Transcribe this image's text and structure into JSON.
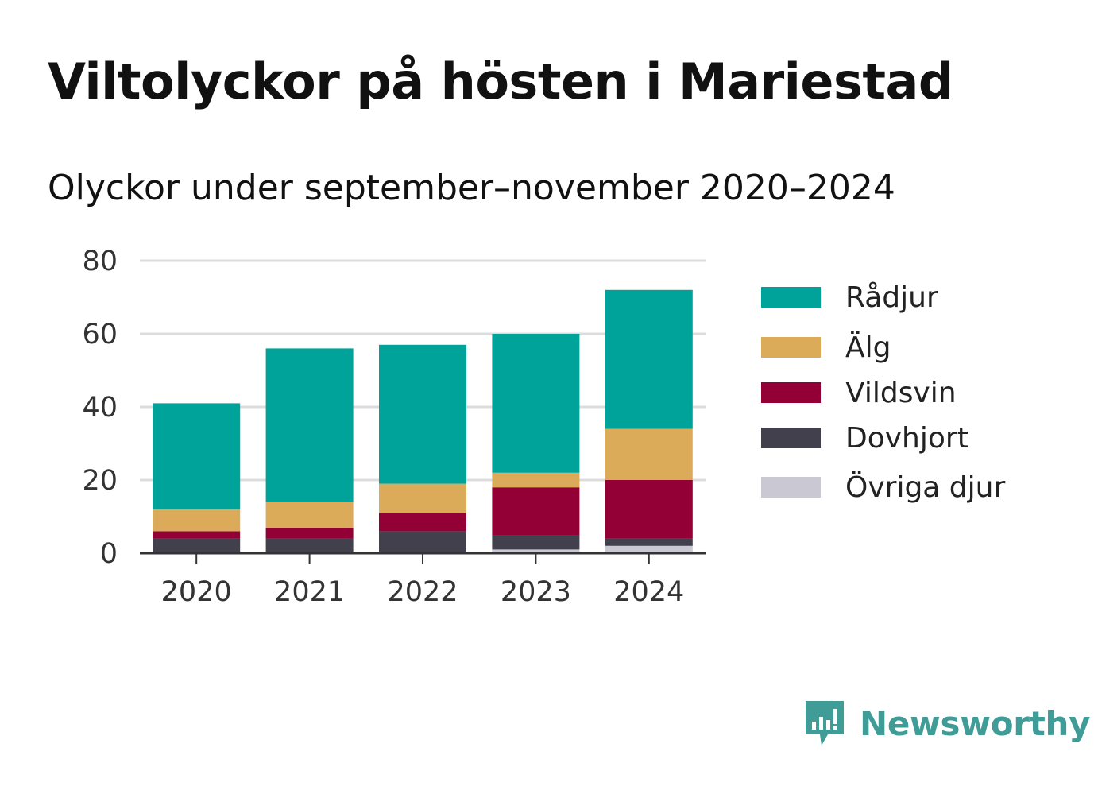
{
  "title": "Viltolyckor på hösten i Mariestad",
  "subtitle": "Olyckor under september–november 2020–2024",
  "brand": {
    "name": "Newsworthy",
    "icon": "newsworthy-logo-icon",
    "color": "#3f9c97"
  },
  "chart_data": {
    "type": "bar",
    "stacked": true,
    "title": "Viltolyckor på hösten i Mariestad",
    "subtitle": "Olyckor under september–november 2020–2024",
    "xlabel": "",
    "ylabel": "",
    "categories": [
      "2020",
      "2021",
      "2022",
      "2023",
      "2024"
    ],
    "ylim": [
      0,
      80
    ],
    "yticks": [
      0,
      20,
      40,
      60,
      80
    ],
    "grid": true,
    "legend_position": "right",
    "series": [
      {
        "name": "Övriga djur",
        "color": "#c9c8d3",
        "values": [
          0,
          0,
          0,
          1,
          2
        ]
      },
      {
        "name": "Dovhjort",
        "color": "#41404c",
        "values": [
          4,
          4,
          6,
          4,
          2
        ]
      },
      {
        "name": "Vildsvin",
        "color": "#930035",
        "values": [
          2,
          3,
          5,
          13,
          16
        ]
      },
      {
        "name": "Älg",
        "color": "#dbab5a",
        "values": [
          6,
          7,
          8,
          4,
          14
        ]
      },
      {
        "name": "Rådjur",
        "color": "#00a399",
        "values": [
          29,
          42,
          38,
          38,
          38
        ]
      }
    ],
    "legend_order": [
      "Rådjur",
      "Älg",
      "Vildsvin",
      "Dovhjort",
      "Övriga djur"
    ]
  }
}
